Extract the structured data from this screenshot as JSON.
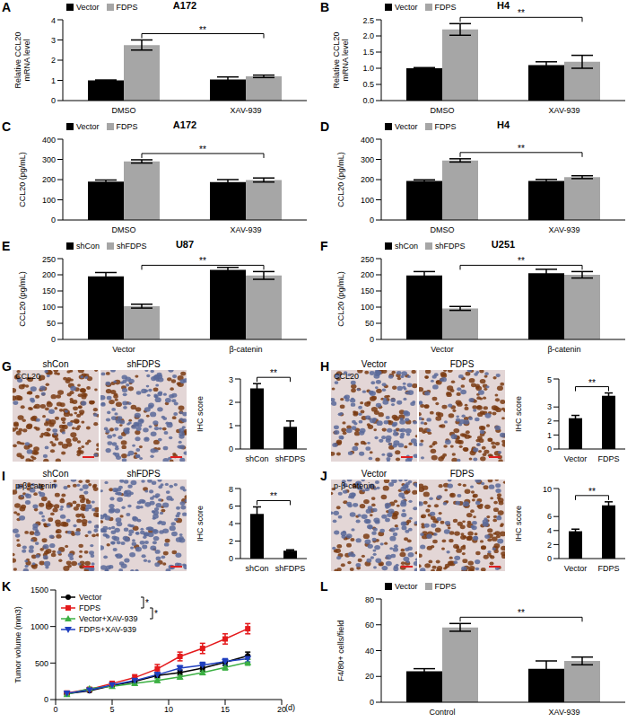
{
  "chart_data": [
    {
      "panel": "A",
      "type": "bar",
      "title": "A172",
      "y_label": "Relative CCL20 mRNA level",
      "categories": [
        "DMSO",
        "XAV-939"
      ],
      "series": [
        {
          "name": "Vector",
          "color": "#000000",
          "values": [
            1.0,
            1.05
          ],
          "errors": [
            0.02,
            0.12
          ]
        },
        {
          "name": "FDPS",
          "color": "#a6a6a6",
          "values": [
            2.75,
            1.2
          ],
          "errors": [
            0.25,
            0.06
          ]
        }
      ],
      "ylim": [
        0,
        4
      ],
      "yticks": [
        0,
        1,
        2,
        3,
        4
      ],
      "legend": "upper left",
      "annotations": [
        {
          "text": "**",
          "between": [
            {
              "category": "DMSO",
              "series": "FDPS"
            },
            {
              "category": "XAV-939",
              "series": "FDPS"
            }
          ]
        }
      ]
    },
    {
      "panel": "B",
      "type": "bar",
      "title": "H4",
      "y_label": "Relative CCL20 mRNA level",
      "categories": [
        "DMSO",
        "XAV-939"
      ],
      "series": [
        {
          "name": "Vector",
          "color": "#000000",
          "values": [
            1.0,
            1.1
          ],
          "errors": [
            0.02,
            0.1
          ]
        },
        {
          "name": "FDPS",
          "color": "#a6a6a6",
          "values": [
            2.2,
            1.2
          ],
          "errors": [
            0.18,
            0.2
          ]
        }
      ],
      "ylim": [
        0,
        2.5
      ],
      "yticks": [
        {
          "value": 0,
          "label": "0.0"
        },
        {
          "value": 0.5,
          "label": "0.5"
        },
        {
          "value": 1,
          "label": "1.0"
        },
        {
          "value": 1.5,
          "label": "1.5"
        },
        {
          "value": 2,
          "label": "2.0"
        },
        {
          "value": 2.5,
          "label": "2.5"
        }
      ],
      "legend": "upper left",
      "annotations": [
        {
          "text": "**",
          "between": [
            {
              "category": "DMSO",
              "series": "FDPS"
            },
            {
              "category": "XAV-939",
              "series": "FDPS"
            }
          ]
        }
      ]
    },
    {
      "panel": "C",
      "type": "bar",
      "title": "A172",
      "y_label": "CCL20 (pg/mL)",
      "categories": [
        "DMSO",
        "XAV-939"
      ],
      "series": [
        {
          "name": "Vector",
          "color": "#000000",
          "values": [
            190,
            188
          ],
          "errors": [
            8,
            12
          ]
        },
        {
          "name": "FDPS",
          "color": "#a6a6a6",
          "values": [
            290,
            198
          ],
          "errors": [
            8,
            10
          ]
        }
      ],
      "ylim": [
        0,
        400
      ],
      "yticks": [
        0,
        100,
        200,
        300,
        400
      ],
      "legend": "upper left",
      "annotations": [
        {
          "text": "**",
          "between": [
            {
              "category": "DMSO",
              "series": "FDPS"
            },
            {
              "category": "XAV-939",
              "series": "FDPS"
            }
          ]
        }
      ]
    },
    {
      "panel": "D",
      "type": "bar",
      "title": "H4",
      "y_label": "CCL20 (pg/mL)",
      "categories": [
        "DMSO",
        "XAV-939"
      ],
      "series": [
        {
          "name": "Vector",
          "color": "#000000",
          "values": [
            193,
            193
          ],
          "errors": [
            6,
            8
          ]
        },
        {
          "name": "FDPS",
          "color": "#a6a6a6",
          "values": [
            295,
            212
          ],
          "errors": [
            8,
            7
          ]
        }
      ],
      "ylim": [
        0,
        400
      ],
      "yticks": [
        0,
        100,
        200,
        300,
        400
      ],
      "legend": "upper left",
      "annotations": [
        {
          "text": "**",
          "between": [
            {
              "category": "DMSO",
              "series": "FDPS"
            },
            {
              "category": "XAV-939",
              "series": "FDPS"
            }
          ]
        }
      ]
    },
    {
      "panel": "E",
      "type": "bar",
      "title": "U87",
      "y_label": "CCL20 (pg/mL)",
      "categories": [
        "Vector",
        "β-catenin"
      ],
      "series": [
        {
          "name": "shCon",
          "color": "#000000",
          "values": [
            195,
            215
          ],
          "errors": [
            12,
            8
          ]
        },
        {
          "name": "shFDPS",
          "color": "#a6a6a6",
          "values": [
            103,
            198
          ],
          "errors": [
            6,
            12
          ]
        }
      ],
      "ylim": [
        0,
        250
      ],
      "yticks": [
        0,
        50,
        100,
        150,
        200,
        250
      ],
      "legend": "upper left",
      "annotations": [
        {
          "text": "**",
          "between": [
            {
              "category": "Vector",
              "series": "shFDPS"
            },
            {
              "category": "β-catenin",
              "series": "shFDPS"
            }
          ]
        }
      ]
    },
    {
      "panel": "F",
      "type": "bar",
      "title": "U251",
      "y_label": "CCL20 (pg/mL)",
      "categories": [
        "Vector",
        "β-catenin"
      ],
      "series": [
        {
          "name": "shCon",
          "color": "#000000",
          "values": [
            198,
            205
          ],
          "errors": [
            12,
            12
          ]
        },
        {
          "name": "shFDPS",
          "color": "#a6a6a6",
          "values": [
            96,
            200
          ],
          "errors": [
            6,
            10
          ]
        }
      ],
      "ylim": [
        0,
        250
      ],
      "yticks": [
        0,
        50,
        100,
        150,
        200,
        250
      ],
      "legend": "upper left",
      "annotations": [
        {
          "text": "**",
          "between": [
            {
              "category": "Vector",
              "series": "shFDPS"
            },
            {
              "category": "β-catenin",
              "series": "shFDPS"
            }
          ]
        }
      ]
    },
    {
      "panel": "G",
      "type": "bar",
      "image_label": "CCL20",
      "image_titles": [
        "shCon",
        "shFDPS"
      ],
      "y_label": "IHC score",
      "categories": [
        "shCon",
        "shFDPS"
      ],
      "values": [
        2.6,
        0.95
      ],
      "errors": [
        0.2,
        0.25
      ],
      "color": "#000000",
      "ylim": [
        0,
        3
      ],
      "yticks": [
        0,
        1,
        2,
        3
      ],
      "annotations": [
        {
          "text": "**",
          "between": [
            {
              "category": "shCon"
            },
            {
              "category": "shFDPS"
            }
          ]
        }
      ]
    },
    {
      "panel": "H",
      "type": "bar",
      "image_label": "CCL20",
      "image_titles": [
        "Vector",
        "FDPS"
      ],
      "y_label": "IHC score",
      "categories": [
        "Vector",
        "FDPS"
      ],
      "values": [
        2.2,
        3.8
      ],
      "errors": [
        0.2,
        0.2
      ],
      "color": "#000000",
      "ylim": [
        0,
        5
      ],
      "yticks": [
        0,
        1,
        2,
        3,
        4,
        5
      ],
      "annotations": [
        {
          "text": "**",
          "between": [
            {
              "category": "Vector"
            },
            {
              "category": "FDPS"
            }
          ]
        }
      ]
    },
    {
      "panel": "I",
      "type": "bar",
      "image_label": "p-β-catenin",
      "image_titles": [
        "shCon",
        "shFDPS"
      ],
      "y_label": "IHC score",
      "categories": [
        "shCon",
        "shFDPS"
      ],
      "values": [
        5.1,
        0.9
      ],
      "errors": [
        0.8,
        0.1
      ],
      "color": "#000000",
      "ylim": [
        0,
        8
      ],
      "yticks": [
        0,
        2,
        4,
        6,
        8
      ],
      "annotations": [
        {
          "text": "**",
          "between": [
            {
              "category": "shCon"
            },
            {
              "category": "shFDPS"
            }
          ]
        }
      ]
    },
    {
      "panel": "J",
      "type": "bar",
      "image_label": "p-β-catenin",
      "image_titles": [
        "Vector",
        "FDPS"
      ],
      "y_label": "IHC score",
      "categories": [
        "Vector",
        "FDPS"
      ],
      "values": [
        3.9,
        7.6
      ],
      "errors": [
        0.3,
        0.5
      ],
      "color": "#000000",
      "ylim": [
        0,
        10
      ],
      "yticks": [
        0,
        2,
        4,
        6,
        8,
        10
      ],
      "annotations": [
        {
          "text": "**",
          "between": [
            {
              "category": "Vector"
            },
            {
              "category": "FDPS"
            }
          ]
        }
      ]
    },
    {
      "panel": "K",
      "type": "line",
      "y_label": "Tumor volume (mm3)",
      "x_label": "(d)",
      "x": [
        1,
        3,
        5,
        7,
        9,
        11,
        13,
        15,
        17
      ],
      "series": [
        {
          "name": "Vector",
          "color": "#000000",
          "marker": "circle",
          "values": [
            80,
            120,
            190,
            250,
            330,
            370,
            430,
            510,
            600
          ],
          "errors": [
            10,
            15,
            20,
            25,
            30,
            35,
            40,
            45,
            50
          ]
        },
        {
          "name": "FDPS",
          "color": "#e41a1c",
          "marker": "square",
          "values": [
            90,
            140,
            220,
            300,
            420,
            590,
            700,
            830,
            970
          ],
          "errors": [
            15,
            20,
            30,
            40,
            60,
            60,
            70,
            70,
            70
          ]
        },
        {
          "name": "Vector+XAV-939",
          "color": "#3cb043",
          "marker": "triangle",
          "values": [
            70,
            150,
            180,
            220,
            260,
            310,
            370,
            440,
            510
          ],
          "errors": [
            10,
            15,
            20,
            20,
            25,
            30,
            30,
            35,
            40
          ]
        },
        {
          "name": "FDPS+XAV-939",
          "color": "#1f3fbf",
          "marker": "triangle-down",
          "values": [
            85,
            130,
            200,
            260,
            340,
            430,
            470,
            520,
            560
          ],
          "errors": [
            10,
            15,
            20,
            25,
            30,
            35,
            40,
            40,
            45
          ]
        }
      ],
      "xlim": [
        0,
        20
      ],
      "xticks": [
        0,
        5,
        10,
        15,
        20
      ],
      "ylim": [
        0,
        1500
      ],
      "yticks": [
        0,
        500,
        1000,
        1500
      ],
      "legend": "upper left",
      "annotations": [
        {
          "text": "*",
          "between": [
            "Vector",
            "FDPS"
          ]
        },
        {
          "text": "*",
          "between": [
            "FDPS",
            "Vector+XAV-939"
          ]
        }
      ]
    },
    {
      "panel": "L",
      "type": "bar",
      "y_label": "F4/80+ cells/field",
      "categories": [
        "Control",
        "XAV-939"
      ],
      "series": [
        {
          "name": "Vector",
          "color": "#000000",
          "values": [
            24,
            26
          ],
          "errors": [
            2,
            6
          ]
        },
        {
          "name": "FDPS",
          "color": "#a6a6a6",
          "values": [
            58,
            32
          ],
          "errors": [
            3,
            3
          ]
        }
      ],
      "ylim": [
        0,
        80
      ],
      "yticks": [
        0,
        20,
        40,
        60,
        80
      ],
      "legend": "upper left",
      "annotations": [
        {
          "text": "**",
          "between": [
            {
              "category": "Control",
              "series": "FDPS"
            },
            {
              "category": "XAV-939",
              "series": "FDPS"
            }
          ]
        }
      ]
    }
  ]
}
